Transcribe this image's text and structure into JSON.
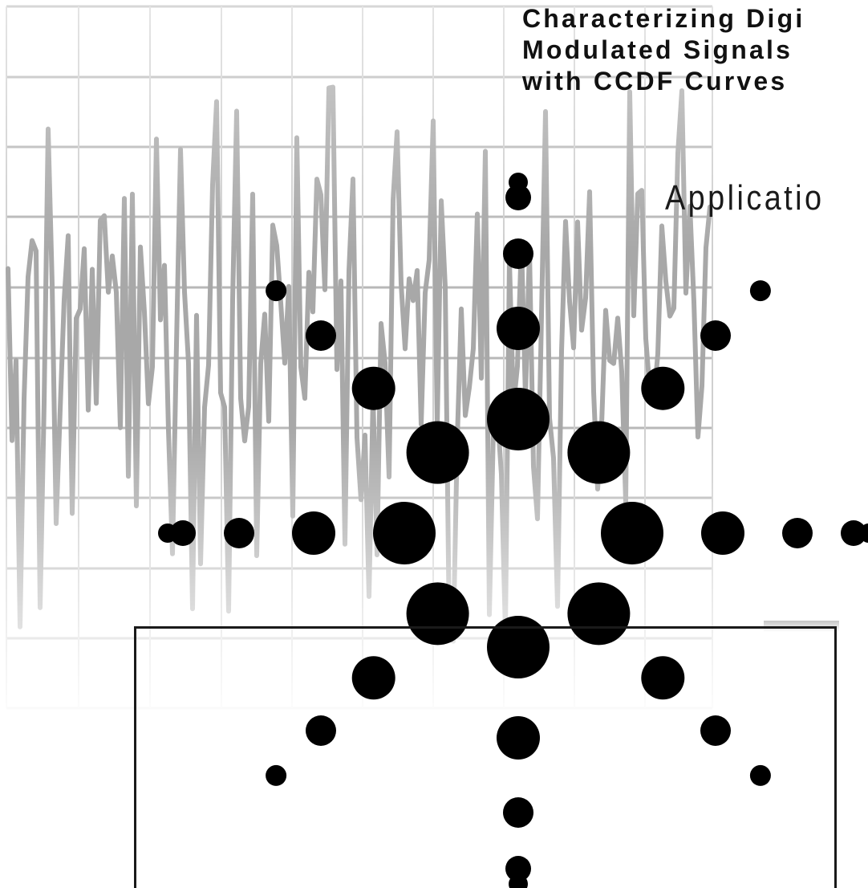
{
  "document": {
    "title_lines": [
      "Characterizing Digi",
      "Modulated Signals",
      "with CCDF Curves"
    ],
    "subtitle": "Applicatio"
  },
  "graphics": {
    "background_trace": "noise-waveform-graphic",
    "logo": "spark-dot-logo",
    "trace_color": "#a8a8a8",
    "grid_color": "#b8b8b8",
    "dot_color": "#000000"
  }
}
